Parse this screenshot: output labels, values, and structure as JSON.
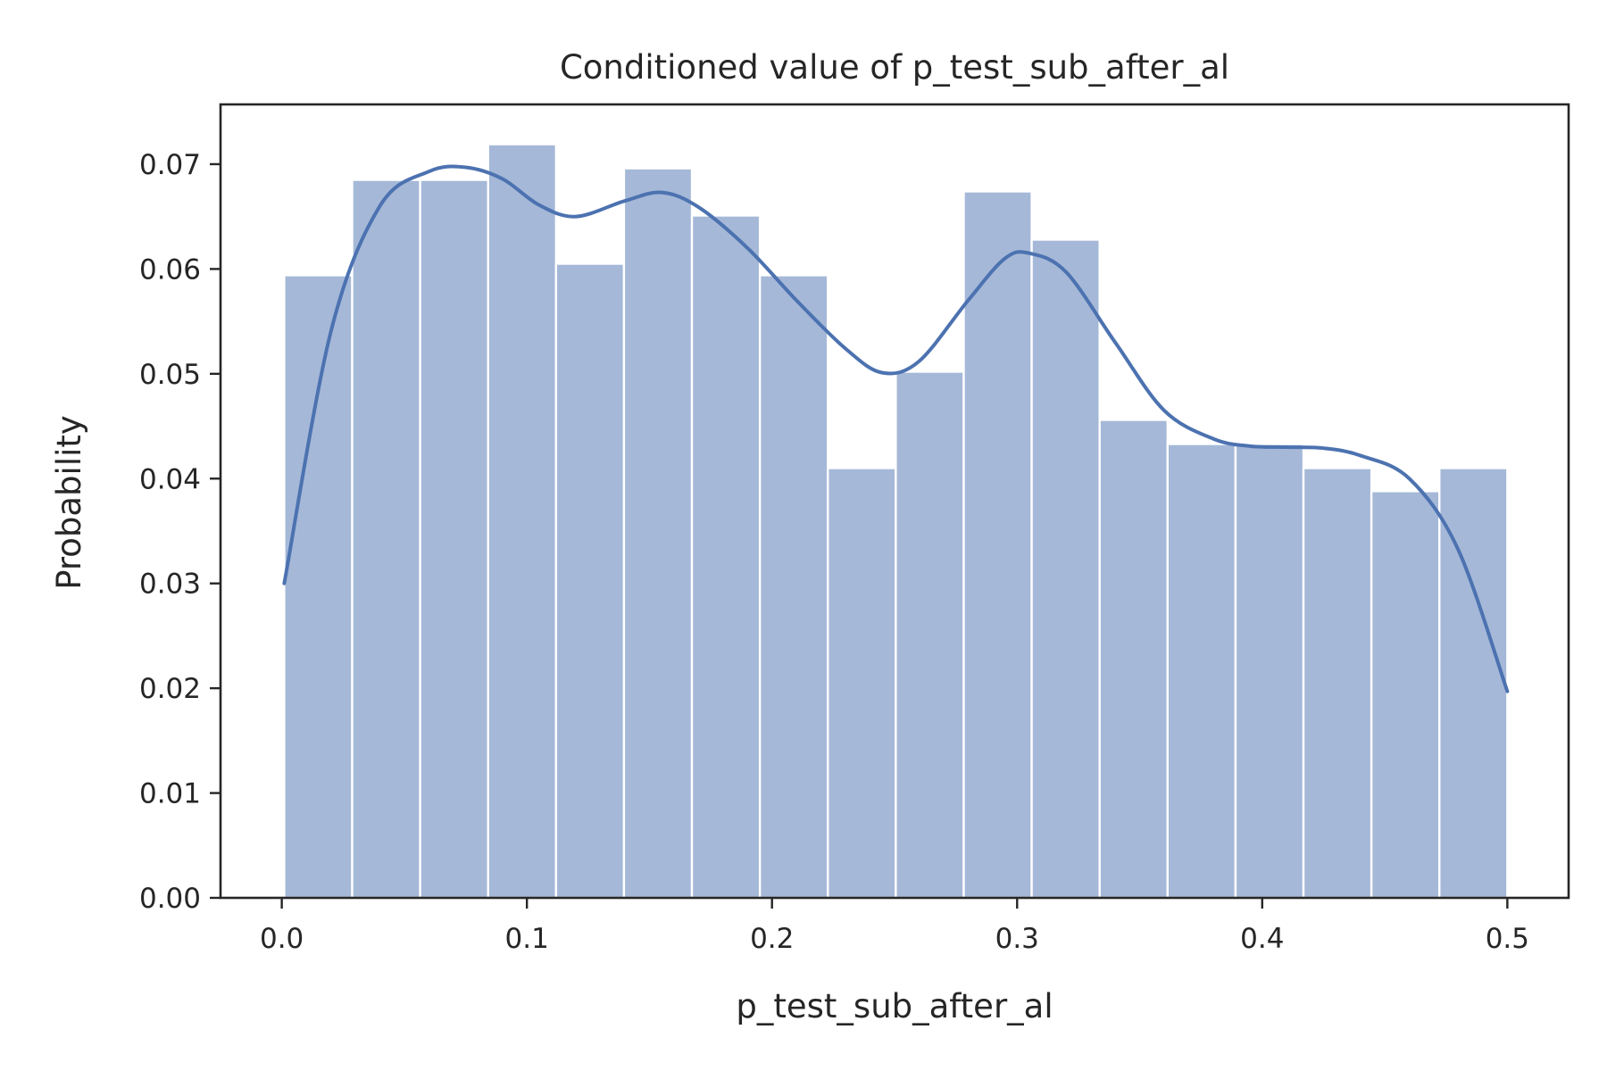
{
  "chart_data": {
    "type": "bar",
    "title": "Conditioned value of p_test_sub_after_al",
    "xlabel": "p_test_sub_after_al",
    "ylabel": "Probability",
    "xlim": [
      -0.025,
      0.525
    ],
    "ylim": [
      0,
      0.0757
    ],
    "x_ticks": [
      0.0,
      0.1,
      0.2,
      0.3,
      0.4,
      0.5
    ],
    "x_tick_labels": [
      "0.0",
      "0.1",
      "0.2",
      "0.3",
      "0.4",
      "0.5"
    ],
    "y_ticks": [
      0.0,
      0.01,
      0.02,
      0.03,
      0.04,
      0.05,
      0.06,
      0.07
    ],
    "y_tick_labels": [
      "0.00",
      "0.01",
      "0.02",
      "0.03",
      "0.04",
      "0.05",
      "0.06",
      "0.07"
    ],
    "grid": false,
    "bar_color": "#a5b8d8",
    "line_color": "#4c72b0",
    "bins": {
      "start": 0.001,
      "end": 0.5,
      "values": [
        0.0594,
        0.0685,
        0.0685,
        0.0719,
        0.0605,
        0.0696,
        0.0651,
        0.0594,
        0.041,
        0.0502,
        0.0674,
        0.0628,
        0.0456,
        0.0433,
        0.0433,
        0.041,
        0.0388,
        0.041
      ]
    },
    "kde": {
      "x": [
        0.001,
        0.02,
        0.04,
        0.06,
        0.075,
        0.09,
        0.105,
        0.12,
        0.14,
        0.155,
        0.17,
        0.19,
        0.21,
        0.23,
        0.245,
        0.26,
        0.28,
        0.295,
        0.305,
        0.32,
        0.34,
        0.36,
        0.38,
        0.395,
        0.41,
        0.425,
        0.44,
        0.46,
        0.48,
        0.5
      ],
      "y": [
        0.03,
        0.054,
        0.066,
        0.0693,
        0.0697,
        0.0686,
        0.0661,
        0.065,
        0.0665,
        0.0673,
        0.0659,
        0.062,
        0.057,
        0.0524,
        0.0501,
        0.0512,
        0.057,
        0.061,
        0.0615,
        0.0597,
        0.053,
        0.0465,
        0.0438,
        0.0431,
        0.043,
        0.0429,
        0.0422,
        0.04,
        0.0332,
        0.0197
      ]
    }
  }
}
